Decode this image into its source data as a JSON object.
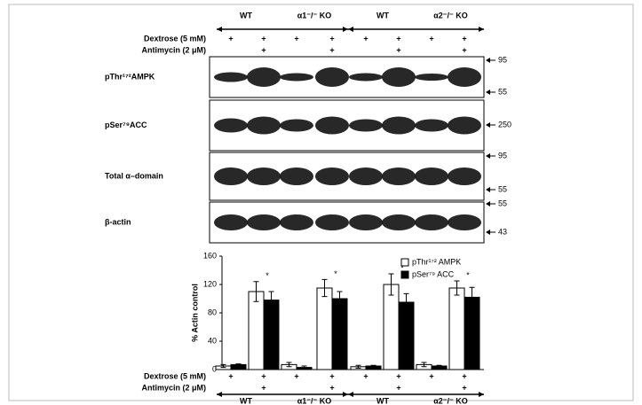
{
  "groups": [
    "WT",
    "α1⁻/⁻ KO",
    "WT",
    "α2⁻/⁻ KO"
  ],
  "treatments": [
    {
      "label": "Dextrose (5 mM)",
      "marks": [
        "+",
        "+",
        "+",
        "+",
        "+",
        "+",
        "+",
        "+"
      ]
    },
    {
      "label": "Antimycin (2 μM)",
      "marks": [
        null,
        "+",
        null,
        "+",
        null,
        "+",
        null,
        "+"
      ]
    }
  ],
  "blots": [
    {
      "label": "pThr¹⁷²AMPK",
      "markers": [
        95,
        55
      ]
    },
    {
      "label": "pSer⁷⁹ACC",
      "markers": [
        250
      ]
    },
    {
      "label": "Total α–domain",
      "markers": [
        95,
        55
      ]
    },
    {
      "label": "β-actin",
      "markers": [
        55,
        43
      ]
    }
  ],
  "chart_data": {
    "type": "bar",
    "y_label": "% Actin control",
    "categories": [
      null,
      null,
      null,
      null,
      null,
      null,
      null,
      null
    ],
    "series": [
      {
        "name": "pThr¹⁷² AMPK",
        "color": "#ffffff",
        "values": [
          5,
          110,
          7,
          115,
          4,
          120,
          7,
          115
        ],
        "errors": [
          2,
          14,
          3,
          12,
          2,
          15,
          3,
          10
        ]
      },
      {
        "name": "pSer⁷⁹ ACC",
        "color": "#000000",
        "values": [
          7,
          98,
          3,
          100,
          5,
          95,
          5,
          102
        ],
        "errors": [
          1,
          12,
          2,
          10,
          1,
          12,
          1,
          14
        ]
      }
    ],
    "annotations": [
      null,
      "*",
      null,
      "*",
      null,
      "*",
      null,
      "*"
    ],
    "ylim": [
      0,
      160
    ],
    "yticks": [
      0,
      40,
      80,
      120,
      160
    ],
    "grid": false,
    "x_treatments": [
      {
        "label": "Dextrose (5 mM)",
        "marks": [
          "+",
          "+",
          "+",
          "+",
          "+",
          "+",
          "+",
          "+"
        ]
      },
      {
        "label": "Antimycin (2 μM)",
        "marks": [
          null,
          "+",
          null,
          "+",
          null,
          "+",
          null,
          "+"
        ]
      }
    ],
    "x_groups": [
      "WT",
      "α1⁻/⁻ KO",
      "WT",
      "α2⁻/⁻ KO"
    ]
  }
}
